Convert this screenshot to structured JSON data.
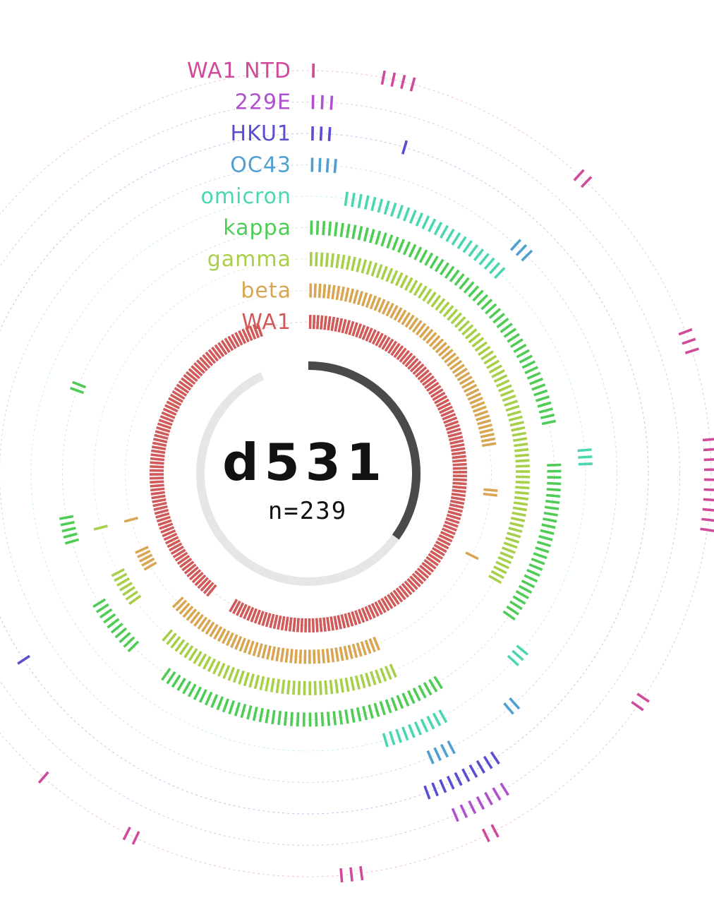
{
  "chart_data": {
    "type": "radial-barcode",
    "title": "d531",
    "subtitle": "n=239",
    "n": 239,
    "coverage_fraction": 0.35,
    "series": [
      {
        "name": "WA1",
        "color": "#d05a5a",
        "segments": [
          [
            0.0,
            0.615
          ],
          [
            0.64,
            1.0
          ]
        ]
      },
      {
        "name": "beta",
        "color": "#d8a653",
        "segments": [
          [
            0.0,
            0.24
          ],
          [
            0.275,
            0.285
          ],
          [
            0.34,
            0.345
          ],
          [
            0.46,
            0.66
          ],
          [
            0.7,
            0.72
          ],
          [
            0.745,
            0.75
          ]
        ]
      },
      {
        "name": "gamma",
        "color": "#a8cf4a",
        "segments": [
          [
            0.0,
            0.35
          ],
          [
            0.455,
            0.65
          ],
          [
            0.68,
            0.71
          ],
          [
            0.745,
            0.75
          ]
        ]
      },
      {
        "name": "kappa",
        "color": "#4fcc55",
        "segments": [
          [
            0.0,
            0.23
          ],
          [
            0.255,
            0.37
          ],
          [
            0.43,
            0.63
          ],
          [
            0.655,
            0.7
          ],
          [
            0.74,
            0.76
          ],
          [
            0.845,
            0.855
          ]
        ]
      },
      {
        "name": "omicron",
        "color": "#4ad6b0",
        "segments": [
          [
            0.02,
            0.13
          ],
          [
            0.245,
            0.26
          ],
          [
            0.375,
            0.39
          ],
          [
            0.44,
            0.48
          ]
        ]
      },
      {
        "name": "OC43",
        "color": "#4f9fd0",
        "segments": [
          [
            0.0,
            0.015
          ],
          [
            0.12,
            0.135
          ],
          [
            0.4,
            0.41
          ],
          [
            0.445,
            0.46
          ]
        ]
      },
      {
        "name": "HKU1",
        "color": "#5a4ed0",
        "segments": [
          [
            0.0,
            0.012
          ],
          [
            0.045,
            0.05
          ],
          [
            0.425,
            0.47
          ],
          [
            0.69,
            0.695
          ]
        ]
      },
      {
        "name": "229E",
        "color": "#b050d0",
        "segments": [
          [
            0.0,
            0.012
          ],
          [
            0.43,
            0.46
          ]
        ]
      },
      {
        "name": "WA1 NTD",
        "color": "#d04a9a",
        "segments": [
          [
            0.0,
            0.004
          ],
          [
            0.028,
            0.048
          ],
          [
            0.12,
            0.13
          ],
          [
            0.2,
            0.215
          ],
          [
            0.245,
            0.29
          ],
          [
            0.36,
            0.37
          ],
          [
            0.445,
            0.45
          ],
          [
            0.5,
            0.515
          ],
          [
            0.6,
            0.605
          ],
          [
            0.645,
            0.65
          ]
        ]
      }
    ]
  }
}
